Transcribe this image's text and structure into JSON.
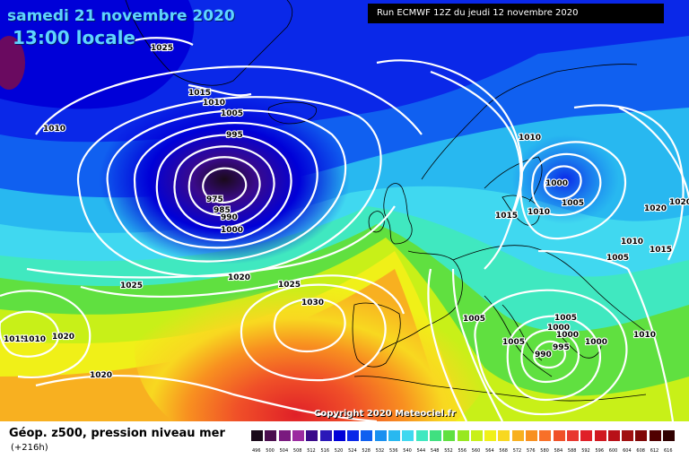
{
  "title": {
    "date": "samedi 21 novembre 2020",
    "time": "13:00 locale"
  },
  "run_info": "Run ECMWF 12Z du jeudi 12 novembre 2020",
  "copyright": "Copyright 2020 Meteociel.fr",
  "footer": {
    "title": "Géop. z500, pression niveau mer",
    "subtitle": "(+216h)"
  },
  "legend": {
    "values": [
      "496",
      "500",
      "504",
      "508",
      "512",
      "516",
      "520",
      "524",
      "528",
      "532",
      "536",
      "540",
      "544",
      "548",
      "552",
      "556",
      "560",
      "564",
      "568",
      "572",
      "576",
      "580",
      "584",
      "588",
      "592",
      "596",
      "600",
      "604",
      "608",
      "612",
      "616"
    ],
    "colors": [
      "#1a0a1a",
      "#4b0f4f",
      "#7a1a7f",
      "#9b2aa0",
      "#3a0a8a",
      "#2a18b8",
      "#0000d8",
      "#0a28e8",
      "#1060f0",
      "#1a90f0",
      "#28b8f0",
      "#40d8f0",
      "#40e8c0",
      "#40e080",
      "#60e040",
      "#98e820",
      "#c8f018",
      "#f0f018",
      "#f8d820",
      "#f8b020",
      "#f89020",
      "#f87028",
      "#f05028",
      "#e83830",
      "#e02028",
      "#d01820",
      "#b81018",
      "#a01010",
      "#800808",
      "#500000",
      "#300000"
    ]
  },
  "isobars": [
    {
      "id": "1025a",
      "label": "1025"
    },
    {
      "id": "1015a",
      "label": "1015"
    },
    {
      "id": "1010a",
      "label": "1010"
    },
    {
      "id": "1005a",
      "label": "1005"
    },
    {
      "id": "1010b",
      "label": "1010"
    },
    {
      "id": "995a",
      "label": "995"
    },
    {
      "id": "975a",
      "label": "975"
    },
    {
      "id": "985a",
      "label": "985"
    },
    {
      "id": "990a",
      "label": "990"
    },
    {
      "id": "1000a",
      "label": "1000"
    },
    {
      "id": "1020a",
      "label": "1020"
    },
    {
      "id": "1025b",
      "label": "1025"
    },
    {
      "id": "1025c",
      "label": "1025"
    },
    {
      "id": "1030a",
      "label": "1030"
    },
    {
      "id": "1015b",
      "label": "1015"
    },
    {
      "id": "1010c",
      "label": "1010"
    },
    {
      "id": "1020b",
      "label": "1020"
    },
    {
      "id": "1020c",
      "label": "1020"
    },
    {
      "id": "1010d",
      "label": "1010"
    },
    {
      "id": "1000b",
      "label": "1000"
    },
    {
      "id": "1005b",
      "label": "1005"
    },
    {
      "id": "1015c",
      "label": "1015"
    },
    {
      "id": "1010e",
      "label": "1010"
    },
    {
      "id": "1020d",
      "label": "1020"
    },
    {
      "id": "1020e",
      "label": "1020"
    },
    {
      "id": "1010f",
      "label": "1010"
    },
    {
      "id": "1015d",
      "label": "1015"
    },
    {
      "id": "1005c",
      "label": "1005"
    },
    {
      "id": "1005d",
      "label": "1005"
    },
    {
      "id": "1005e",
      "label": "1005"
    },
    {
      "id": "1000c",
      "label": "1000"
    },
    {
      "id": "995b",
      "label": "995"
    },
    {
      "id": "990b",
      "label": "990"
    },
    {
      "id": "1000d",
      "label": "1000"
    },
    {
      "id": "1010g",
      "label": "1010"
    },
    {
      "id": "1005f",
      "label": "1005"
    },
    {
      "id": "1000e",
      "label": "1000"
    }
  ]
}
